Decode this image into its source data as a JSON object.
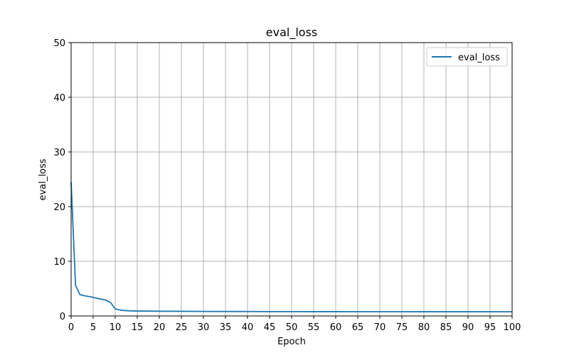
{
  "chart_data": {
    "type": "line",
    "title": "eval_loss",
    "xlabel": "Epoch",
    "ylabel": "eval_loss",
    "xlim": [
      0,
      100
    ],
    "ylim": [
      0,
      50
    ],
    "xticks": [
      0,
      5,
      10,
      15,
      20,
      25,
      30,
      35,
      40,
      45,
      50,
      55,
      60,
      65,
      70,
      75,
      80,
      85,
      90,
      95,
      100
    ],
    "yticks": [
      0,
      10,
      20,
      30,
      40,
      50
    ],
    "grid": true,
    "legend_position": "top-right",
    "series": [
      {
        "name": "eval_loss",
        "color": "#1f77b4",
        "x": [
          0,
          1,
          2,
          3,
          4,
          5,
          6,
          7,
          8,
          9,
          10,
          11,
          12,
          13,
          14,
          15,
          20,
          25,
          30,
          35,
          40,
          45,
          50,
          55,
          60,
          65,
          70,
          75,
          80,
          85,
          90,
          95,
          100
        ],
        "y": [
          24.5,
          5.6,
          3.9,
          3.7,
          3.55,
          3.4,
          3.2,
          3.05,
          2.85,
          2.4,
          1.3,
          1.1,
          1.0,
          0.95,
          0.92,
          0.9,
          0.87,
          0.85,
          0.83,
          0.82,
          0.81,
          0.8,
          0.8,
          0.79,
          0.79,
          0.78,
          0.78,
          0.78,
          0.77,
          0.77,
          0.77,
          0.77,
          0.76
        ]
      }
    ]
  }
}
